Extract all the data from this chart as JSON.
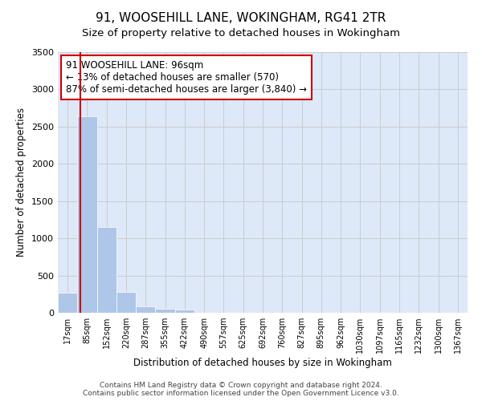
{
  "title": "91, WOOSEHILL LANE, WOKINGHAM, RG41 2TR",
  "subtitle": "Size of property relative to detached houses in Wokingham",
  "xlabel": "Distribution of detached houses by size in Wokingham",
  "ylabel": "Number of detached properties",
  "bar_labels": [
    "17sqm",
    "85sqm",
    "152sqm",
    "220sqm",
    "287sqm",
    "355sqm",
    "422sqm",
    "490sqm",
    "557sqm",
    "625sqm",
    "692sqm",
    "760sqm",
    "827sqm",
    "895sqm",
    "962sqm",
    "1030sqm",
    "1097sqm",
    "1165sqm",
    "1232sqm",
    "1300sqm",
    "1367sqm"
  ],
  "bar_values": [
    270,
    2640,
    1150,
    280,
    90,
    50,
    40,
    0,
    0,
    0,
    0,
    0,
    0,
    0,
    0,
    0,
    0,
    0,
    0,
    0,
    0
  ],
  "bar_color": "#aec6e8",
  "bar_edgecolor": "#aec6e8",
  "vline_color": "#cc0000",
  "property_sqm": 96,
  "annotation_text": "91 WOOSEHILL LANE: 96sqm\n← 13% of detached houses are smaller (570)\n87% of semi-detached houses are larger (3,840) →",
  "annotation_box_edgecolor": "#cc0000",
  "annotation_fontsize": 8.5,
  "ylim": [
    0,
    3500
  ],
  "yticks": [
    0,
    500,
    1000,
    1500,
    2000,
    2500,
    3000,
    3500
  ],
  "grid_color": "#cccccc",
  "background_color": "#dde8f8",
  "footnote": "Contains HM Land Registry data © Crown copyright and database right 2024.\nContains public sector information licensed under the Open Government Licence v3.0.",
  "title_fontsize": 11,
  "subtitle_fontsize": 9.5,
  "xlabel_fontsize": 8.5,
  "ylabel_fontsize": 8.5,
  "footnote_fontsize": 6.5
}
